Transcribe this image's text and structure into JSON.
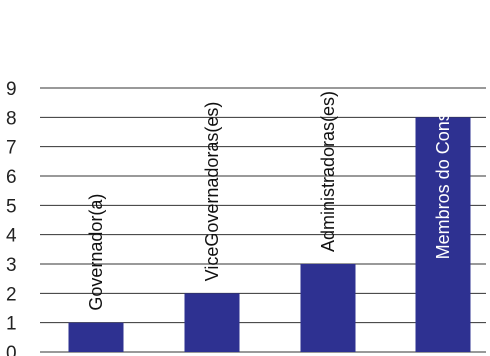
{
  "chart_data": {
    "type": "bar",
    "categories": [
      "Governador(a)",
      "ViceGovernadoras(es)",
      "Administradoras(es)",
      "Membros do Conselho"
    ],
    "values": [
      1,
      2,
      3,
      8
    ],
    "ylim": [
      0,
      9
    ],
    "yticks": [
      "0",
      "1",
      "2",
      "3",
      "4",
      "5",
      "6",
      "7",
      "8",
      "9"
    ],
    "grid": true,
    "bar_color": "#2e3191",
    "label_color_outside": "#111111",
    "label_color_inside": "#ffffff"
  }
}
